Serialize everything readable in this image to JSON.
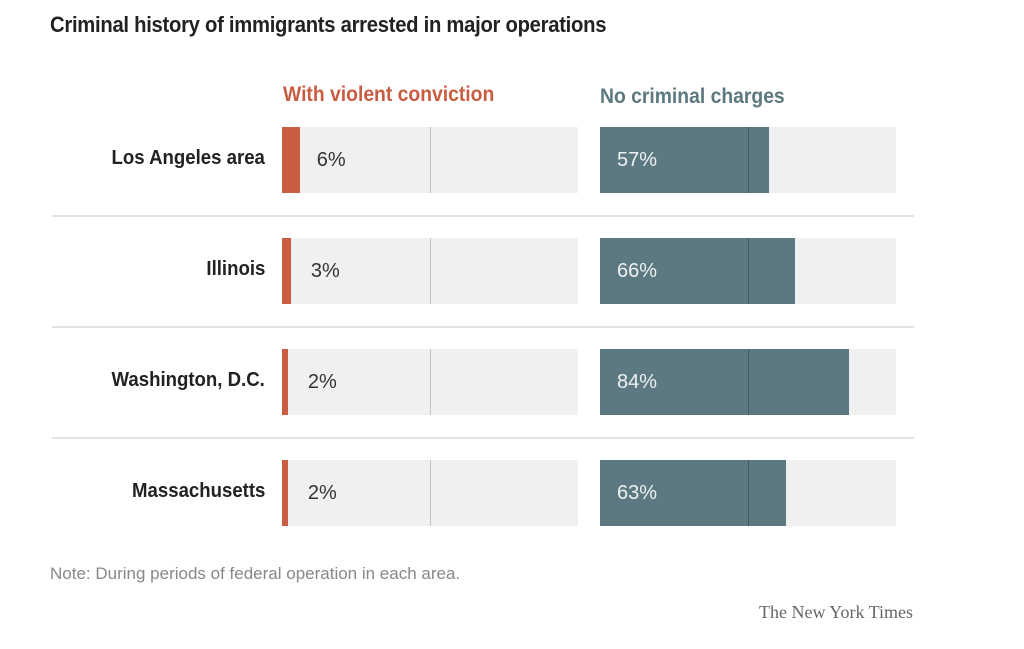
{
  "colors": {
    "violent": "#c95c41",
    "no_charges": "#5c7880",
    "track": "#f0f0f0"
  },
  "chart_data": {
    "type": "bar",
    "title": "Criminal history of immigrants arrested in major operations",
    "categories": [
      "Los Angeles area",
      "Illinois",
      "Washington, D.C.",
      "Massachusetts"
    ],
    "series": [
      {
        "name": "With violent conviction",
        "values": [
          6,
          3,
          2,
          2
        ],
        "labels": [
          "6%",
          "3%",
          "2%",
          "2%"
        ]
      },
      {
        "name": "No criminal charges",
        "values": [
          57,
          66,
          84,
          63
        ],
        "labels": [
          "57%",
          "66%",
          "84%",
          "63%"
        ]
      }
    ],
    "xlim": [
      0,
      100
    ],
    "reference_line": 50,
    "note": "Note: During periods of federal operation in each area.",
    "credit": "The New York Times"
  }
}
